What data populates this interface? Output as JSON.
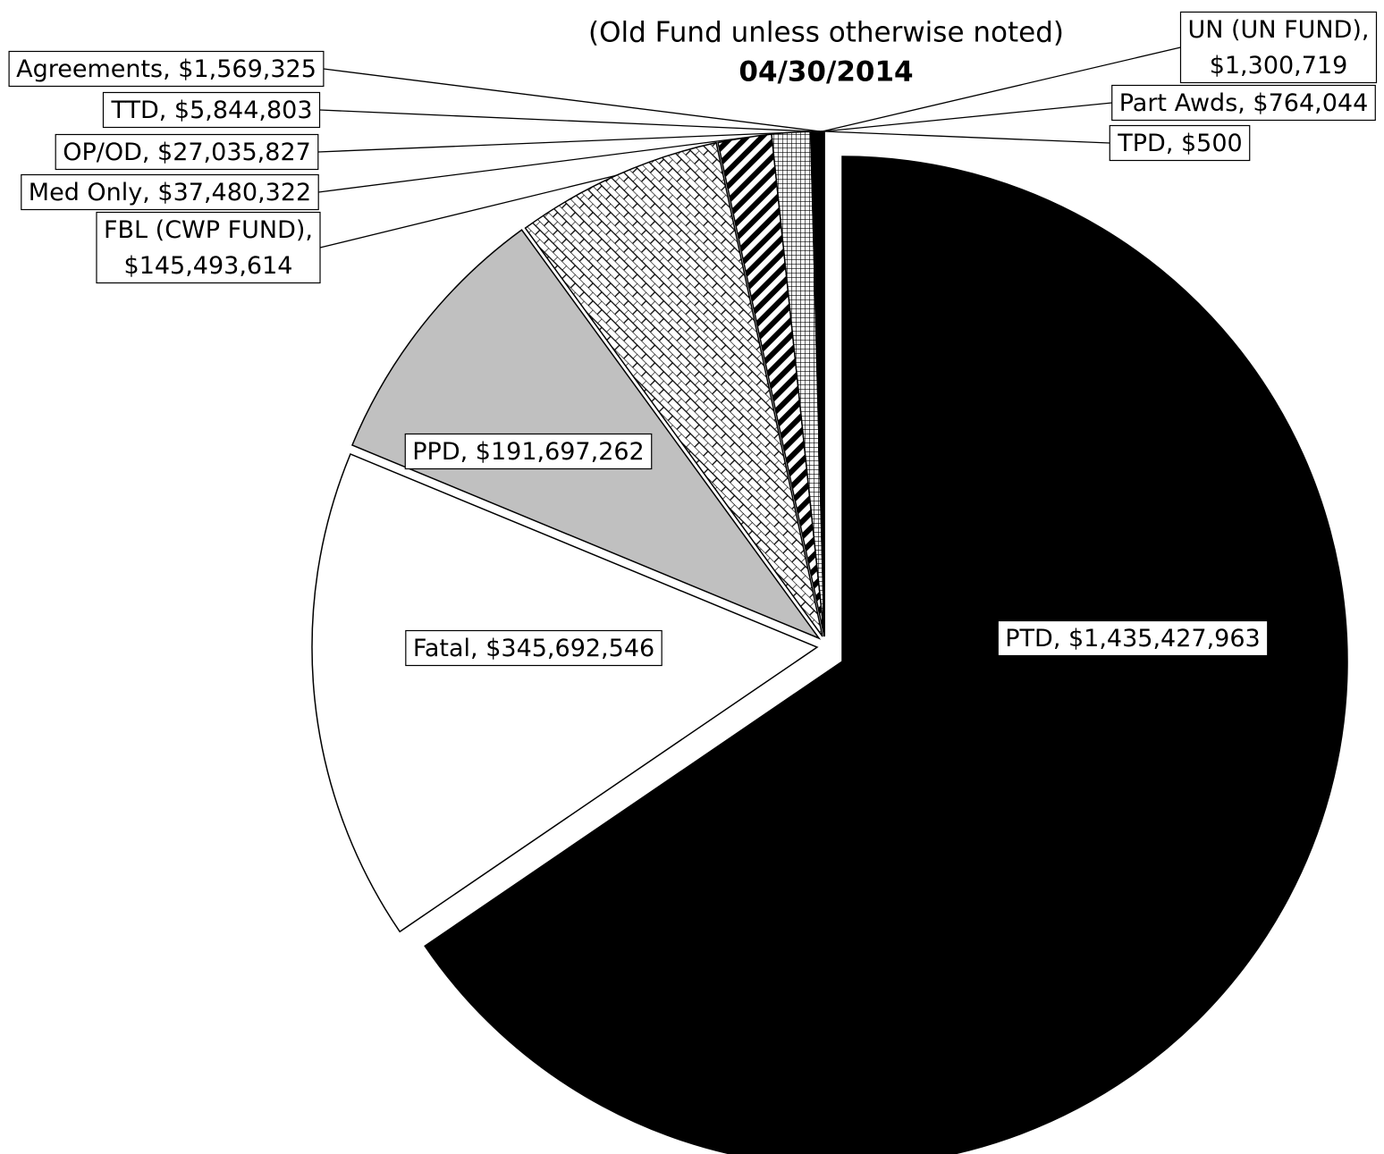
{
  "chart_data": {
    "type": "pie",
    "subtitle": "(Old Fund unless otherwise noted)",
    "date": "04/30/2014",
    "values": [
      1435427963,
      345692546,
      191697262,
      145493614,
      37480322,
      27035827,
      5844803,
      1569325,
      1300719,
      764044,
      500
    ],
    "value_labels": [
      [
        "PTD, $1,435,427,963"
      ],
      [
        "Fatal, $345,692,546"
      ],
      [
        "PPD, $191,697,262"
      ],
      [
        "FBL (CWP FUND),",
        "$145,493,614"
      ],
      [
        "Med Only, $37,480,322"
      ],
      [
        "OP/OD, $27,035,827"
      ],
      [
        "TTD, $5,844,803"
      ],
      [
        "Agreements, $1,569,325"
      ],
      [
        "UN (UN FUND),",
        "$1,300,719"
      ],
      [
        "Part Awds, $764,044"
      ],
      [
        "TPD, $500"
      ]
    ],
    "colors": [
      "#000000",
      "#ffffff",
      "#c0c0c0",
      "#ffffff",
      "#ffffff",
      "#ffffff",
      "#000000",
      "#000000",
      "#000000",
      "#000000",
      "#000000"
    ],
    "patterns": [
      "solid",
      "solid",
      "solid",
      "brick",
      "stripes",
      "grid",
      "solid",
      "solid",
      "solid",
      "solid",
      "solid"
    ],
    "start_angle": 0,
    "direction": "clockwise"
  }
}
